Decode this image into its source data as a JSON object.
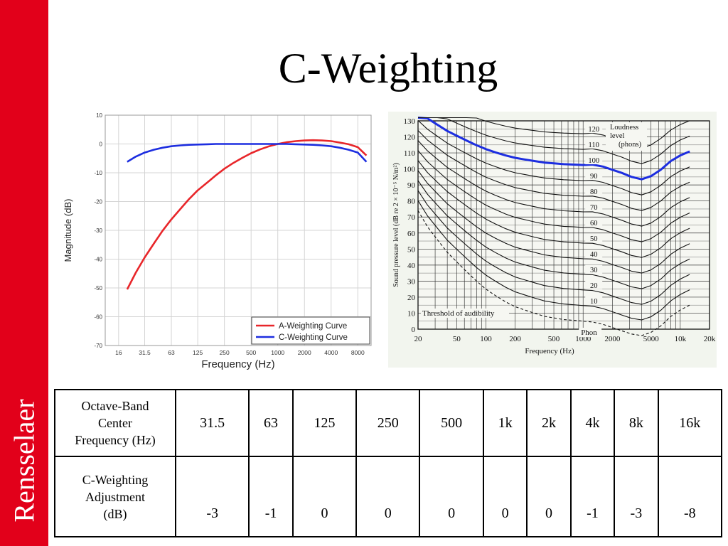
{
  "slide": {
    "title": "C-Weighting",
    "brand": "Rensselaer",
    "colors": {
      "brand": "#e2001a",
      "a_curve": "#e8262a",
      "c_curve": "#1d2ee0",
      "grid": "#cccccc"
    }
  },
  "chart_data": [
    {
      "type": "line",
      "title": "",
      "xlabel": "Frequency (Hz)",
      "ylabel": "Magnitude (dB)",
      "x_scale": "log2",
      "xlim": [
        11.3,
        11300
      ],
      "ylim": [
        -70,
        10
      ],
      "x_ticks": [
        16,
        31.5,
        63,
        125,
        250,
        500,
        1000,
        2000,
        4000,
        8000
      ],
      "x_tick_labels": [
        "16",
        "31.5",
        "63",
        "125",
        "250",
        "500",
        "1000",
        "2000",
        "4000",
        "8000"
      ],
      "y_ticks": [
        10,
        0,
        -10,
        -20,
        -30,
        -40,
        -50,
        -60,
        -70
      ],
      "grid": true,
      "legend_position": "bottom-right",
      "series": [
        {
          "name": "A-Weighting Curve",
          "color": "#e8262a",
          "x": [
            20,
            25,
            31.5,
            40,
            50,
            63,
            80,
            100,
            125,
            160,
            200,
            250,
            315,
            400,
            500,
            630,
            800,
            1000,
            1250,
            1600,
            2000,
            2500,
            3150,
            4000,
            5000,
            6300,
            8000,
            10000
          ],
          "y": [
            -50.5,
            -44.7,
            -39.4,
            -34.6,
            -30.2,
            -26.2,
            -22.5,
            -19.1,
            -16.1,
            -13.4,
            -10.9,
            -8.6,
            -6.6,
            -4.8,
            -3.2,
            -1.9,
            -0.8,
            0,
            0.6,
            1.0,
            1.2,
            1.3,
            1.2,
            1.0,
            0.5,
            -0.1,
            -1.1,
            -4.0
          ]
        },
        {
          "name": "C-Weighting Curve",
          "color": "#1d2ee0",
          "x": [
            20,
            25,
            31.5,
            40,
            50,
            63,
            80,
            100,
            125,
            160,
            200,
            250,
            315,
            400,
            500,
            630,
            800,
            1000,
            1250,
            1600,
            2000,
            2500,
            3150,
            4000,
            5000,
            6300,
            8000,
            10000
          ],
          "y": [
            -6.2,
            -4.4,
            -3.0,
            -2.0,
            -1.3,
            -0.8,
            -0.5,
            -0.3,
            -0.2,
            -0.1,
            0,
            0,
            0,
            0,
            0,
            0,
            0,
            0,
            0,
            -0.1,
            -0.2,
            -0.3,
            -0.5,
            -0.8,
            -1.3,
            -2.0,
            -3.0,
            -6.2
          ]
        }
      ]
    },
    {
      "type": "line",
      "title": "Loudness level (phons)",
      "title_lines": [
        "Loudness",
        "level",
        "(phons)"
      ],
      "xlabel": "Frequency (Hz)",
      "ylabel": "Sound pressure level (dB re 2 × 10⁻⁵ N/m²)",
      "x_scale": "log",
      "xlim": [
        20,
        20000
      ],
      "ylim": [
        0,
        130
      ],
      "x_ticks": [
        20,
        50,
        100,
        200,
        500,
        1000,
        2000,
        5000,
        10000,
        20000
      ],
      "x_tick_labels": [
        "20",
        "50",
        "100",
        "200",
        "500",
        "1000",
        "2000",
        "5000",
        "10k",
        "20k"
      ],
      "y_ticks": [
        0,
        10,
        20,
        30,
        40,
        50,
        60,
        70,
        80,
        90,
        100,
        110,
        120,
        130
      ],
      "grid": true,
      "phon_levels": [
        10,
        20,
        30,
        40,
        50,
        60,
        70,
        80,
        90,
        100,
        110,
        120
      ],
      "annotations": [
        "Threshold of audibility",
        "Phon"
      ],
      "highlight_curve": {
        "phon": 100,
        "color": "#1d2ee0"
      },
      "x_freq": [
        20,
        25,
        31.5,
        40,
        50,
        63,
        80,
        100,
        125,
        160,
        200,
        250,
        315,
        400,
        500,
        630,
        800,
        1000,
        1250,
        1600,
        2000,
        2500,
        3150,
        4000,
        5000,
        6300,
        8000,
        10000,
        12500
      ],
      "threshold": [
        74,
        64,
        56,
        48,
        42,
        36,
        30,
        25,
        21,
        17,
        14,
        12,
        10,
        8,
        7,
        6,
        5.5,
        5,
        4.5,
        3,
        1,
        -1,
        -3,
        -4,
        -2,
        2,
        8,
        12,
        15
      ],
      "ear_offset": [
        0,
        0,
        0,
        0,
        0,
        0,
        0,
        0,
        0,
        0,
        0,
        0,
        0,
        0,
        0,
        0,
        0,
        0,
        1,
        0,
        -2,
        -4,
        -7,
        -9,
        -7,
        -3,
        2,
        5,
        7
      ]
    }
  ],
  "table": {
    "rows": [
      {
        "header_lines": [
          "Octave-Band",
          "Center",
          "Frequency (Hz)"
        ],
        "cells": [
          "31.5",
          "63",
          "125",
          "250",
          "500",
          "1k",
          "2k",
          "4k",
          "8k",
          "16k"
        ]
      },
      {
        "header_lines": [
          "C-Weighting",
          "Adjustment",
          "(dB)"
        ],
        "cells": [
          "-3",
          "-1",
          "0",
          "0",
          "0",
          "0",
          "0",
          "-1",
          "-3",
          "-8"
        ]
      }
    ]
  }
}
